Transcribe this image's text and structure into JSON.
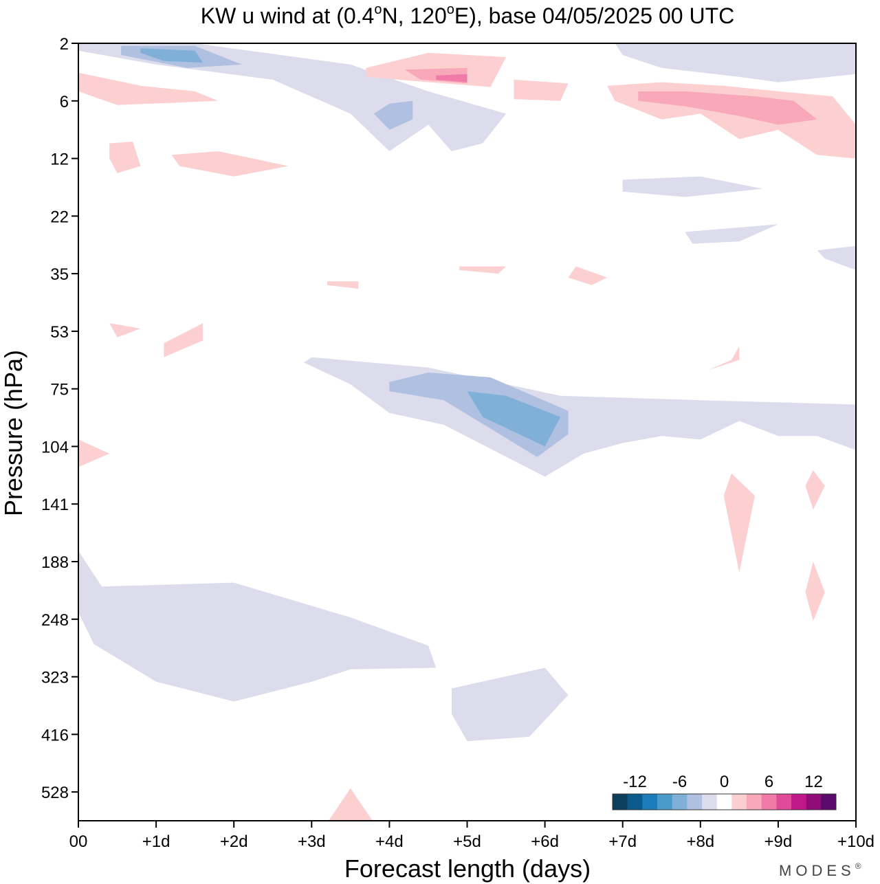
{
  "chart_data": {
    "type": "heatmap",
    "title": "KW u wind at (0.4°N, 120°E),  base 04/05/2025  00 UTC",
    "title_parts": {
      "prefix": "KW u wind at (0.4",
      "deg1": "o",
      "mid": "N, 120",
      "deg2": "o",
      "suffix": "E),  base 04/05/2025  00 UTC"
    },
    "xlabel": "Forecast length (days)",
    "ylabel": "Pressure (hPa)",
    "x_ticks": [
      "00",
      "+1d",
      "+2d",
      "+3d",
      "+4d",
      "+5d",
      "+6d",
      "+7d",
      "+8d",
      "+9d",
      "+10d"
    ],
    "y_ticks": [
      "2",
      "6",
      "12",
      "22",
      "35",
      "53",
      "75",
      "104",
      "141",
      "188",
      "248",
      "323",
      "416",
      "528"
    ],
    "xlim": [
      0,
      10
    ],
    "colorbar": {
      "labels": [
        "-12",
        "-6",
        "0",
        "6",
        "12"
      ],
      "colors": [
        "#0d3e5e",
        "#0a5a8e",
        "#1a7cb8",
        "#4a9bcc",
        "#80b0d8",
        "#b0c0e0",
        "#dcdcec",
        "#ffffff",
        "#fcd0d0",
        "#f8a8b8",
        "#f07aa8",
        "#e04a98",
        "#c01888",
        "#900a78",
        "#5a0a6a"
      ]
    },
    "regions": [
      {
        "sign": "negative",
        "level": 1,
        "points": [
          [
            0.0,
            2
          ],
          [
            1.5,
            2
          ],
          [
            3.5,
            3
          ],
          [
            4.5,
            5
          ],
          [
            5.5,
            7
          ],
          [
            5.2,
            10
          ],
          [
            4.8,
            11
          ],
          [
            4.5,
            8
          ],
          [
            4.0,
            11
          ],
          [
            3.5,
            7
          ],
          [
            2.5,
            4
          ],
          [
            1.0,
            3
          ],
          [
            0.0,
            2.3
          ]
        ]
      },
      {
        "sign": "negative",
        "level": 2,
        "points": [
          [
            0.55,
            2.1
          ],
          [
            1.5,
            2.1
          ],
          [
            2.1,
            3
          ],
          [
            1.4,
            3.2
          ],
          [
            0.55,
            2.5
          ]
        ]
      },
      {
        "sign": "negative",
        "level": 3,
        "points": [
          [
            0.8,
            2.2
          ],
          [
            1.5,
            2.3
          ],
          [
            1.6,
            2.9
          ],
          [
            1.1,
            2.8
          ],
          [
            0.8,
            2.4
          ]
        ]
      },
      {
        "sign": "negative",
        "level": 1,
        "points": [
          [
            3.9,
            6.0
          ],
          [
            4.5,
            5.4
          ],
          [
            4.5,
            7.8
          ],
          [
            4.0,
            9.0
          ],
          [
            3.6,
            7.0
          ]
        ]
      },
      {
        "sign": "negative",
        "level": 2,
        "points": [
          [
            4.0,
            6.2
          ],
          [
            4.3,
            6.0
          ],
          [
            4.3,
            7.5
          ],
          [
            4.0,
            8.5
          ],
          [
            3.8,
            7.0
          ]
        ]
      },
      {
        "sign": "negative",
        "level": 1,
        "points": [
          [
            6.9,
            2.0
          ],
          [
            10.0,
            2.0
          ],
          [
            10.0,
            3.6
          ],
          [
            9.0,
            4.2
          ],
          [
            8.5,
            3.8
          ],
          [
            7.5,
            3.2
          ],
          [
            7.0,
            2.5
          ]
        ]
      },
      {
        "sign": "negative",
        "level": 1,
        "points": [
          [
            7.0,
            15.0
          ],
          [
            8.0,
            14.5
          ],
          [
            8.8,
            16.5
          ],
          [
            7.8,
            18.0
          ],
          [
            7.0,
            17.0
          ]
        ]
      },
      {
        "sign": "negative",
        "level": 1,
        "points": [
          [
            7.8,
            25.0
          ],
          [
            9.0,
            23.5
          ],
          [
            8.5,
            27.0
          ],
          [
            7.9,
            27.5
          ]
        ]
      },
      {
        "sign": "negative",
        "level": 1,
        "points": [
          [
            9.5,
            29.0
          ],
          [
            10.0,
            28.0
          ],
          [
            10.0,
            34.0
          ],
          [
            9.6,
            31.0
          ]
        ]
      },
      {
        "sign": "negative",
        "level": 1,
        "points": [
          [
            3.0,
            62.0
          ],
          [
            4.5,
            66.0
          ],
          [
            6.2,
            78.0
          ],
          [
            8.0,
            80.0
          ],
          [
            10.0,
            82.0
          ],
          [
            10.0,
            106.0
          ],
          [
            9.5,
            98.0
          ],
          [
            9.0,
            98.0
          ],
          [
            8.5,
            90.0
          ],
          [
            8.0,
            100.0
          ],
          [
            7.5,
            98.0
          ],
          [
            7.0,
            102.0
          ],
          [
            6.5,
            108.0
          ],
          [
            6.0,
            122.0
          ],
          [
            4.7,
            92.0
          ],
          [
            4.0,
            86.0
          ],
          [
            3.5,
            73.0
          ],
          [
            2.9,
            64.0
          ]
        ]
      },
      {
        "sign": "negative",
        "level": 2,
        "points": [
          [
            4.0,
            72.0
          ],
          [
            4.5,
            68.0
          ],
          [
            5.3,
            70.0
          ],
          [
            6.3,
            85.0
          ],
          [
            6.3,
            97.0
          ],
          [
            5.9,
            110.0
          ],
          [
            5.3,
            94.0
          ],
          [
            4.7,
            80.0
          ],
          [
            4.0,
            76.0
          ]
        ]
      },
      {
        "sign": "negative",
        "level": 3,
        "points": [
          [
            5.0,
            76.0
          ],
          [
            5.5,
            78.0
          ],
          [
            6.2,
            88.0
          ],
          [
            6.0,
            104.0
          ],
          [
            5.2,
            88.0
          ]
        ]
      },
      {
        "sign": "negative",
        "level": 1,
        "points": [
          [
            0.0,
            178.0
          ],
          [
            0.3,
            212.0
          ],
          [
            2.0,
            208.0
          ],
          [
            3.5,
            246.0
          ],
          [
            4.5,
            280.0
          ],
          [
            4.6,
            310.0
          ],
          [
            3.5,
            312.0
          ],
          [
            3.0,
            330.0
          ],
          [
            2.0,
            360.0
          ],
          [
            1.0,
            330.0
          ],
          [
            0.2,
            278.0
          ],
          [
            0.0,
            240.0
          ]
        ]
      },
      {
        "sign": "negative",
        "level": 1,
        "points": [
          [
            4.8,
            340.0
          ],
          [
            6.0,
            310.0
          ],
          [
            6.3,
            350.0
          ],
          [
            5.8,
            420.0
          ],
          [
            5.0,
            428.0
          ],
          [
            4.8,
            380.0
          ]
        ]
      },
      {
        "sign": "positive",
        "level": 1,
        "points": [
          [
            3.7,
            3.2
          ],
          [
            4.5,
            2.4
          ],
          [
            5.5,
            2.6
          ],
          [
            5.3,
            4.6
          ],
          [
            4.5,
            4.2
          ],
          [
            3.7,
            3.8
          ]
        ]
      },
      {
        "sign": "positive",
        "level": 2,
        "points": [
          [
            4.2,
            3.3
          ],
          [
            5.0,
            3.2
          ],
          [
            5.0,
            4.3
          ],
          [
            4.4,
            4.0
          ]
        ]
      },
      {
        "sign": "positive",
        "level": 3,
        "points": [
          [
            4.6,
            3.7
          ],
          [
            5.0,
            3.6
          ],
          [
            5.0,
            4.2
          ],
          [
            4.6,
            4.0
          ]
        ]
      },
      {
        "sign": "positive",
        "level": 1,
        "points": [
          [
            0.0,
            3.5
          ],
          [
            0.8,
            4.5
          ],
          [
            1.5,
            5.0
          ],
          [
            1.8,
            6.0
          ],
          [
            0.5,
            6.3
          ],
          [
            0.0,
            5.0
          ]
        ]
      },
      {
        "sign": "positive",
        "level": 1,
        "points": [
          [
            6.8,
            4.5
          ],
          [
            7.5,
            4.2
          ],
          [
            8.3,
            4.5
          ],
          [
            9.0,
            5.0
          ],
          [
            9.7,
            5.5
          ],
          [
            10.0,
            8.0
          ],
          [
            10.0,
            12.0
          ],
          [
            9.5,
            11.5
          ],
          [
            9.0,
            8.5
          ],
          [
            8.5,
            9.5
          ],
          [
            8.0,
            7.0
          ],
          [
            7.5,
            7.5
          ],
          [
            6.9,
            6.0
          ]
        ]
      },
      {
        "sign": "positive",
        "level": 2,
        "points": [
          [
            7.2,
            5.0
          ],
          [
            7.8,
            5.0
          ],
          [
            8.7,
            5.5
          ],
          [
            9.2,
            6.0
          ],
          [
            9.5,
            7.5
          ],
          [
            9.0,
            8.0
          ],
          [
            8.5,
            7.2
          ],
          [
            7.8,
            6.4
          ],
          [
            7.2,
            6.0
          ]
        ]
      },
      {
        "sign": "positive",
        "level": 1,
        "points": [
          [
            5.6,
            4.0
          ],
          [
            6.3,
            4.3
          ],
          [
            6.2,
            6.0
          ],
          [
            5.6,
            5.8
          ]
        ]
      },
      {
        "sign": "positive",
        "level": 1,
        "points": [
          [
            1.2,
            11.5
          ],
          [
            1.8,
            11.0
          ],
          [
            2.7,
            13.0
          ],
          [
            2.0,
            14.5
          ],
          [
            1.3,
            13.0
          ]
        ]
      },
      {
        "sign": "positive",
        "level": 1,
        "points": [
          [
            0.4,
            10.0
          ],
          [
            0.7,
            9.8
          ],
          [
            0.8,
            13.0
          ],
          [
            0.5,
            14.0
          ],
          [
            0.4,
            12.0
          ]
        ]
      },
      {
        "sign": "positive",
        "level": 1,
        "points": [
          [
            4.9,
            33.0
          ],
          [
            5.5,
            33.0
          ],
          [
            5.4,
            35.0
          ],
          [
            4.9,
            34.0
          ]
        ]
      },
      {
        "sign": "positive",
        "level": 1,
        "points": [
          [
            6.4,
            33.0
          ],
          [
            6.8,
            36.0
          ],
          [
            6.6,
            38.0
          ],
          [
            6.3,
            36.0
          ]
        ]
      },
      {
        "sign": "positive",
        "level": 1,
        "points": [
          [
            3.2,
            37.0
          ],
          [
            3.6,
            37.0
          ],
          [
            3.6,
            39.0
          ],
          [
            3.2,
            38.0
          ]
        ]
      },
      {
        "sign": "positive",
        "level": 1,
        "points": [
          [
            0.4,
            50.0
          ],
          [
            0.8,
            52.0
          ],
          [
            0.5,
            55.0
          ]
        ]
      },
      {
        "sign": "positive",
        "level": 1,
        "points": [
          [
            1.1,
            57.0
          ],
          [
            1.6,
            50.0
          ],
          [
            1.6,
            56.0
          ],
          [
            1.1,
            62.0
          ]
        ]
      },
      {
        "sign": "positive",
        "level": 1,
        "points": [
          [
            8.5,
            58.0
          ],
          [
            8.5,
            63.0
          ],
          [
            8.1,
            67.0
          ],
          [
            8.4,
            63.0
          ]
        ]
      },
      {
        "sign": "positive",
        "level": 1,
        "points": [
          [
            0.0,
            100.0
          ],
          [
            0.4,
            108.0
          ],
          [
            0.0,
            116.0
          ]
        ]
      },
      {
        "sign": "positive",
        "level": 1,
        "points": [
          [
            8.4,
            120.0
          ],
          [
            8.7,
            135.0
          ],
          [
            8.5,
            198.0
          ],
          [
            8.3,
            135.0
          ]
        ]
      },
      {
        "sign": "positive",
        "level": 1,
        "points": [
          [
            9.45,
            118.0
          ],
          [
            9.6,
            128.0
          ],
          [
            9.45,
            145.0
          ],
          [
            9.35,
            128.0
          ]
        ]
      },
      {
        "sign": "positive",
        "level": 1,
        "points": [
          [
            9.45,
            188.0
          ],
          [
            9.6,
            218.0
          ],
          [
            9.45,
            250.0
          ],
          [
            9.35,
            218.0
          ]
        ]
      },
      {
        "sign": "positive",
        "level": 1,
        "points": [
          [
            3.2,
            600.0
          ],
          [
            3.5,
            520.0
          ],
          [
            3.8,
            600.0
          ]
        ]
      }
    ]
  },
  "branding": {
    "text": "MODES",
    "mark": "®"
  }
}
